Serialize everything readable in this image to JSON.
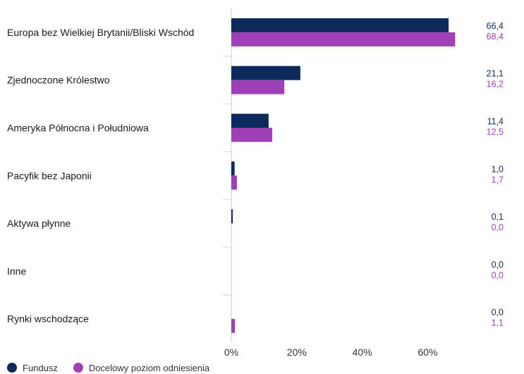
{
  "chart_data": {
    "type": "bar",
    "orientation": "horizontal",
    "categories": [
      "Europa bez Wielkiej Brytanii/Bliski Wschód",
      "Zjednoczone Królestwo",
      "Ameryka Północna i Południowa",
      "Pacyfik bez Japonii",
      "Aktywa płynne",
      "Inne",
      "Rynki wschodzące"
    ],
    "series": [
      {
        "name": "Fundusz",
        "color": "#0c2a5b",
        "values": [
          66.4,
          21.1,
          11.4,
          1.0,
          0.1,
          0.0,
          0.0
        ],
        "labels": [
          "66,4",
          "21,1",
          "11,4",
          "1,0",
          "0,1",
          "0,0",
          "0,0"
        ]
      },
      {
        "name": "Docelowy poziom odniesienia",
        "color": "#a040b8",
        "values": [
          68.4,
          16.2,
          12.5,
          1.7,
          0.0,
          0.0,
          1.1
        ],
        "labels": [
          "68,4",
          "16,2",
          "12,5",
          "1,7",
          "0,0",
          "0,0",
          "1,1"
        ]
      }
    ],
    "xlim": [
      0,
      80
    ],
    "xticks": [
      0,
      20,
      40,
      60
    ],
    "xtick_labels": [
      "0%",
      "20%",
      "40%",
      "60%"
    ],
    "title": "",
    "xlabel": "",
    "ylabel": "",
    "grid": false,
    "legend_position": "bottom-left"
  }
}
